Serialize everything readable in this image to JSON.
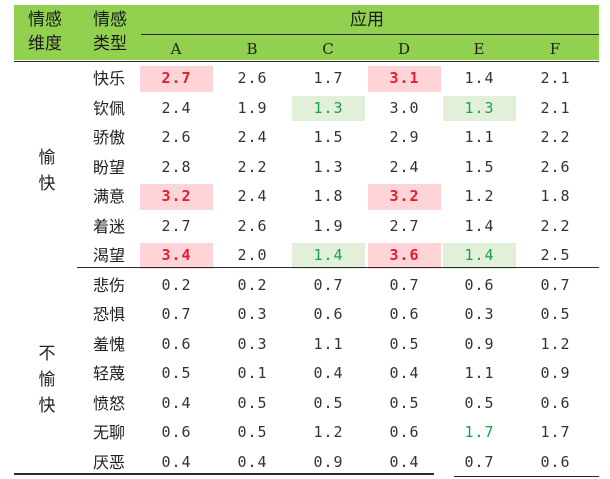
{
  "header": {
    "dim_label_line1": "情感",
    "dim_label_line2": "维度",
    "type_label_line1": "情感",
    "type_label_line2": "类型",
    "apps_label": "应用",
    "columns": [
      "A",
      "B",
      "C",
      "D",
      "E",
      "F"
    ]
  },
  "groups": [
    {
      "label_chars": [
        "愉",
        "快"
      ]
    },
    {
      "label_chars": [
        "不",
        "愉",
        "快"
      ]
    }
  ],
  "rows": [
    {
      "type": "快乐",
      "values": [
        "2.7",
        "2.6",
        "1.7",
        "3.1",
        "1.4",
        "2.1"
      ]
    },
    {
      "type": "钦佩",
      "values": [
        "2.4",
        "1.9",
        "1.3",
        "3.0",
        "1.3",
        "2.1"
      ]
    },
    {
      "type": "骄傲",
      "values": [
        "2.6",
        "2.4",
        "1.5",
        "2.9",
        "1.1",
        "2.2"
      ]
    },
    {
      "type": "盼望",
      "values": [
        "2.8",
        "2.2",
        "1.3",
        "2.4",
        "1.5",
        "2.6"
      ]
    },
    {
      "type": "满意",
      "values": [
        "3.2",
        "2.4",
        "1.8",
        "3.2",
        "1.2",
        "1.8"
      ]
    },
    {
      "type": "着迷",
      "values": [
        "2.7",
        "2.6",
        "1.9",
        "2.7",
        "1.4",
        "2.2"
      ]
    },
    {
      "type": "渴望",
      "values": [
        "3.4",
        "2.0",
        "1.4",
        "3.6",
        "1.4",
        "2.5"
      ]
    },
    {
      "type": "悲伤",
      "values": [
        "0.2",
        "0.2",
        "0.7",
        "0.7",
        "0.6",
        "0.7"
      ]
    },
    {
      "type": "恐惧",
      "values": [
        "0.7",
        "0.3",
        "0.6",
        "0.6",
        "0.3",
        "0.5"
      ]
    },
    {
      "type": "羞愧",
      "values": [
        "0.6",
        "0.3",
        "1.1",
        "0.5",
        "0.9",
        "1.2"
      ]
    },
    {
      "type": "轻蔑",
      "values": [
        "0.5",
        "0.1",
        "0.4",
        "0.4",
        "1.1",
        "0.9"
      ]
    },
    {
      "type": "愤怒",
      "values": [
        "0.4",
        "0.5",
        "0.5",
        "0.5",
        "0.5",
        "0.6"
      ]
    },
    {
      "type": "无聊",
      "values": [
        "0.6",
        "0.5",
        "1.2",
        "0.6",
        "1.7",
        "1.7"
      ]
    },
    {
      "type": "厌恶",
      "values": [
        "0.4",
        "0.4",
        "0.9",
        "0.4",
        "0.7",
        "0.6"
      ]
    }
  ],
  "highlights": {
    "red_bg": [
      [
        0,
        0
      ],
      [
        0,
        3
      ],
      [
        4,
        0
      ],
      [
        4,
        3
      ],
      [
        6,
        0
      ],
      [
        6,
        3
      ]
    ],
    "green_bg": [
      [
        1,
        2
      ],
      [
        1,
        4
      ],
      [
        6,
        2
      ],
      [
        6,
        4
      ]
    ],
    "green_text": [
      [
        12,
        4
      ]
    ]
  },
  "colors": {
    "header_bg": "#92d050",
    "red_bg": "#ffd4d8",
    "red_text": "#e01f2d",
    "green_bg": "#e2efd9",
    "green_text": "#16a34a"
  }
}
